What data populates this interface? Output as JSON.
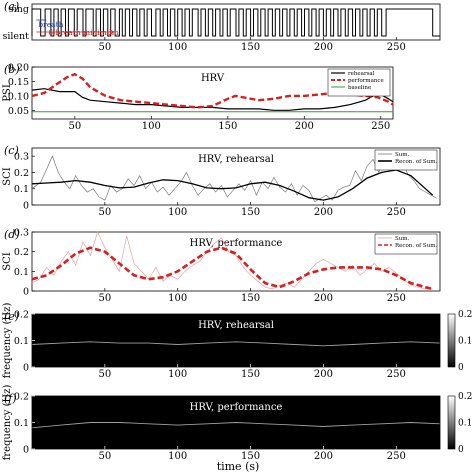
{
  "figure": {
    "xlabel": "time (s)",
    "colors": {
      "hrv": "#000000",
      "performance": "#d62020",
      "baseline": "#2ca02c",
      "sci_raw_rehearsal": "#7a7a7a",
      "sci_raw_performance": "#e8a0a0",
      "annot_blue": "#1f3fbf",
      "annot_red": "#d62020"
    }
  },
  "chart_data": [
    {
      "id": "a",
      "panel_label": "(a)",
      "type": "line",
      "title": "",
      "xlabel": "",
      "ylabel": "",
      "ytick_labels": [
        "sing",
        "silent"
      ],
      "xlim": [
        0,
        280
      ],
      "xticks": [
        50,
        100,
        150,
        200,
        250
      ],
      "annotations": [
        "breath",
        "6 breath minimum"
      ],
      "series": [
        {
          "values_description": "binary sing/silent state",
          "sing_intervals": [
            [
              0,
              6
            ],
            [
              9,
              13
            ],
            [
              15,
              18
            ],
            [
              20,
              23
            ],
            [
              25,
              29
            ],
            [
              31,
              35
            ],
            [
              37,
              42
            ],
            [
              44,
              47
            ],
            [
              49,
              52
            ],
            [
              54,
              57
            ],
            [
              60,
              62
            ],
            [
              64,
              67
            ],
            [
              69,
              72
            ],
            [
              74,
              77
            ],
            [
              79,
              82
            ],
            [
              85,
              88
            ],
            [
              90,
              93
            ],
            [
              95,
              98
            ],
            [
              100,
              103
            ],
            [
              105,
              108
            ],
            [
              110,
              114
            ],
            [
              116,
              119
            ],
            [
              121,
              124
            ],
            [
              126,
              129
            ],
            [
              131,
              134
            ],
            [
              136,
              140
            ],
            [
              142,
              145
            ],
            [
              147,
              150
            ],
            [
              152,
              155
            ],
            [
              157,
              160
            ],
            [
              162,
              165
            ],
            [
              167,
              170
            ],
            [
              172,
              175
            ],
            [
              177,
              180
            ],
            [
              182,
              185
            ],
            [
              187,
              190
            ],
            [
              192,
              195
            ],
            [
              197,
              200
            ],
            [
              202,
              205
            ],
            [
              207,
              210
            ],
            [
              212,
              215
            ],
            [
              217,
              220
            ],
            [
              222,
              225
            ],
            [
              227,
              230
            ],
            [
              232,
              235
            ],
            [
              237,
              240
            ],
            [
              243,
              275
            ]
          ]
        }
      ]
    },
    {
      "id": "b",
      "panel_label": "(b)",
      "type": "line",
      "title": "HRV",
      "xlabel": "",
      "ylabel": "PSI",
      "xlim": [
        22,
        258
      ],
      "ylim": [
        0.02,
        0.2
      ],
      "xticks": [
        50,
        100,
        150,
        200,
        250
      ],
      "yticks": [
        0.05,
        0.1,
        0.15,
        0.2
      ],
      "ytick_labels": [
        "0.05",
        "0.10",
        "0.15",
        "0.20"
      ],
      "legend": [
        "rehearsal",
        "performance",
        "baseline"
      ],
      "legend_position": "top-right",
      "series": [
        {
          "name": "rehearsal",
          "x": [
            22,
            30,
            40,
            50,
            55,
            60,
            70,
            80,
            90,
            100,
            110,
            120,
            130,
            140,
            150,
            160,
            170,
            180,
            190,
            200,
            210,
            220,
            230,
            240,
            245,
            250,
            255,
            258
          ],
          "y": [
            0.12,
            0.125,
            0.115,
            0.115,
            0.095,
            0.085,
            0.08,
            0.075,
            0.07,
            0.07,
            0.065,
            0.06,
            0.06,
            0.06,
            0.055,
            0.055,
            0.055,
            0.05,
            0.05,
            0.055,
            0.055,
            0.06,
            0.07,
            0.085,
            0.1,
            0.105,
            0.09,
            0.08
          ]
        },
        {
          "name": "performance",
          "x": [
            22,
            30,
            38,
            45,
            50,
            55,
            60,
            70,
            80,
            90,
            100,
            110,
            120,
            130,
            140,
            150,
            155,
            160,
            170,
            180,
            190,
            200,
            210,
            220,
            230,
            240,
            248,
            255,
            258
          ],
          "y": [
            0.1,
            0.11,
            0.14,
            0.165,
            0.175,
            0.16,
            0.13,
            0.1,
            0.085,
            0.08,
            0.075,
            0.07,
            0.065,
            0.06,
            0.065,
            0.09,
            0.1,
            0.095,
            0.085,
            0.09,
            0.1,
            0.1,
            0.105,
            0.11,
            0.105,
            0.1,
            0.095,
            0.08,
            0.07
          ]
        },
        {
          "name": "baseline",
          "x": [
            22,
            258
          ],
          "y": [
            0.045,
            0.045
          ]
        }
      ]
    },
    {
      "id": "c",
      "panel_label": "(c)",
      "type": "line",
      "title": "HRV, rehearsal",
      "xlabel": "",
      "ylabel": "SCI",
      "xlim": [
        0,
        280
      ],
      "ylim": [
        0,
        0.35
      ],
      "xticks": [
        50,
        100,
        150,
        200,
        250
      ],
      "yticks": [
        0,
        0.1,
        0.2,
        0.3
      ],
      "legend": [
        "Sum.",
        "Recon. of Sum."
      ],
      "legend_position": "top-right",
      "series": [
        {
          "name": "Sum.",
          "x": [
            0,
            6,
            10,
            14,
            18,
            22,
            26,
            30,
            34,
            38,
            42,
            46,
            50,
            54,
            58,
            62,
            66,
            70,
            74,
            78,
            82,
            86,
            90,
            94,
            98,
            102,
            106,
            110,
            114,
            118,
            122,
            126,
            130,
            134,
            138,
            142,
            146,
            150,
            154,
            158,
            162,
            166,
            170,
            174,
            178,
            182,
            186,
            190,
            194,
            198,
            202,
            206,
            210,
            214,
            218,
            222,
            226,
            230,
            234,
            238,
            242,
            246,
            250,
            254,
            258,
            262,
            266,
            270,
            274,
            278
          ],
          "y": [
            0.1,
            0.14,
            0.22,
            0.3,
            0.2,
            0.14,
            0.1,
            0.18,
            0.12,
            0.08,
            0.1,
            0.05,
            0.03,
            0.12,
            0.08,
            0.1,
            0.16,
            0.12,
            0.18,
            0.1,
            0.14,
            0.08,
            0.11,
            0.06,
            0.1,
            0.14,
            0.2,
            0.12,
            0.06,
            0.1,
            0.13,
            0.08,
            0.12,
            0.05,
            0.09,
            0.13,
            0.09,
            0.15,
            0.06,
            0.14,
            0.1,
            0.17,
            0.11,
            0.08,
            0.13,
            0.06,
            0.12,
            0.09,
            0.02,
            0.04,
            0.06,
            0.03,
            0.09,
            0.11,
            0.12,
            0.21,
            0.15,
            0.24,
            0.28,
            0.2,
            0.33,
            0.25,
            0.3,
            0.26,
            0.19,
            0.15,
            0.1,
            0.08,
            0.06,
            0.04
          ]
        },
        {
          "name": "Recon. of Sum.",
          "x": [
            0,
            10,
            20,
            30,
            40,
            50,
            60,
            70,
            80,
            90,
            100,
            110,
            120,
            130,
            140,
            150,
            160,
            170,
            180,
            190,
            200,
            210,
            220,
            230,
            240,
            250,
            260,
            270,
            275
          ],
          "y": [
            0.13,
            0.135,
            0.14,
            0.15,
            0.14,
            0.12,
            0.105,
            0.11,
            0.135,
            0.155,
            0.15,
            0.13,
            0.105,
            0.1,
            0.105,
            0.13,
            0.14,
            0.12,
            0.085,
            0.045,
            0.03,
            0.05,
            0.1,
            0.165,
            0.2,
            0.215,
            0.18,
            0.1,
            0.06
          ]
        }
      ]
    },
    {
      "id": "d",
      "panel_label": "(d)",
      "type": "line",
      "title": "HRV, performance",
      "xlabel": "",
      "ylabel": "SCI",
      "xlim": [
        0,
        280
      ],
      "ylim": [
        0,
        0.3
      ],
      "xticks": [
        50,
        100,
        150,
        200,
        250
      ],
      "yticks": [
        0,
        0.1,
        0.2,
        0.3
      ],
      "legend": [
        "Sum.",
        "Recon. of Sum."
      ],
      "legend_position": "top-right",
      "series": [
        {
          "name": "Sum.",
          "x": [
            0,
            5,
            10,
            15,
            20,
            25,
            30,
            35,
            40,
            45,
            50,
            55,
            60,
            65,
            70,
            75,
            80,
            85,
            90,
            95,
            100,
            105,
            110,
            115,
            120,
            125,
            130,
            135,
            140,
            145,
            150,
            155,
            160,
            165,
            170,
            175,
            180,
            185,
            190,
            195,
            200,
            205,
            210,
            215,
            220,
            225,
            230,
            235,
            240,
            245,
            250,
            255,
            260,
            265,
            270,
            275
          ],
          "y": [
            0.04,
            0.06,
            0.12,
            0.08,
            0.15,
            0.2,
            0.13,
            0.25,
            0.18,
            0.3,
            0.22,
            0.16,
            0.1,
            0.28,
            0.14,
            0.1,
            0.06,
            0.12,
            0.05,
            0.08,
            0.06,
            0.1,
            0.13,
            0.15,
            0.2,
            0.24,
            0.27,
            0.2,
            0.18,
            0.12,
            0.08,
            0.05,
            0.02,
            0.01,
            0.03,
            0.04,
            0.02,
            0.06,
            0.1,
            0.14,
            0.16,
            0.14,
            0.12,
            0.1,
            0.13,
            0.08,
            0.11,
            0.14,
            0.1,
            0.12,
            0.09,
            0.06,
            0.03,
            0.02,
            0.01,
            0.01
          ]
        },
        {
          "name": "Recon. of Sum.",
          "x": [
            0,
            10,
            20,
            30,
            40,
            50,
            60,
            70,
            80,
            90,
            100,
            110,
            120,
            130,
            140,
            150,
            160,
            170,
            180,
            190,
            200,
            210,
            220,
            230,
            240,
            250,
            260,
            270,
            275
          ],
          "y": [
            0.06,
            0.08,
            0.13,
            0.19,
            0.22,
            0.2,
            0.14,
            0.08,
            0.06,
            0.07,
            0.1,
            0.15,
            0.2,
            0.22,
            0.19,
            0.11,
            0.04,
            0.02,
            0.05,
            0.09,
            0.11,
            0.12,
            0.12,
            0.12,
            0.11,
            0.08,
            0.04,
            0.02,
            0.01
          ]
        }
      ]
    },
    {
      "id": "e",
      "panel_label": "(e)",
      "type": "heatmap",
      "title": "HRV, rehearsal",
      "xlabel": "",
      "ylabel": "frequency (Hz)",
      "xlim": [
        0,
        280
      ],
      "ylim": [
        0,
        0.2
      ],
      "xticks": [
        50,
        100,
        150,
        200,
        250
      ],
      "yticks": [
        0,
        0.1,
        0.2
      ],
      "colorbar_ticks": [
        "0",
        "0.1",
        "0.2"
      ],
      "ridge": {
        "x": [
          0,
          20,
          40,
          60,
          80,
          100,
          120,
          140,
          160,
          180,
          200,
          220,
          240,
          260,
          280
        ],
        "y": [
          0.085,
          0.09,
          0.095,
          0.09,
          0.09,
          0.085,
          0.09,
          0.095,
          0.09,
          0.085,
          0.08,
          0.085,
          0.09,
          0.095,
          0.09
        ]
      }
    },
    {
      "id": "f",
      "panel_label": "(f)",
      "type": "heatmap",
      "title": "HRV, performance",
      "xlabel": "time (s)",
      "ylabel": "frequency (Hz)",
      "xlim": [
        0,
        280
      ],
      "ylim": [
        0,
        0.2
      ],
      "xticks": [
        50,
        100,
        150,
        200,
        250
      ],
      "yticks": [
        0,
        0.1,
        0.2
      ],
      "colorbar_ticks": [
        "0",
        "0.1",
        "0.2"
      ],
      "ridge": {
        "x": [
          0,
          20,
          40,
          60,
          80,
          100,
          120,
          140,
          160,
          180,
          200,
          220,
          240,
          260,
          280
        ],
        "y": [
          0.08,
          0.09,
          0.1,
          0.1,
          0.095,
          0.09,
          0.095,
          0.1,
          0.095,
          0.09,
          0.085,
          0.09,
          0.095,
          0.1,
          0.095
        ]
      }
    }
  ]
}
